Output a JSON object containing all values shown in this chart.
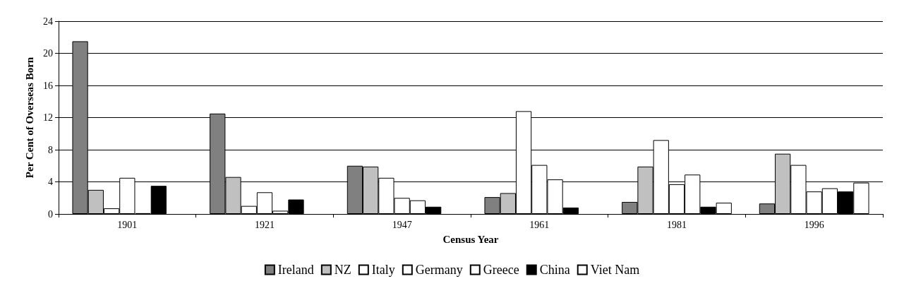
{
  "chart_data": {
    "type": "bar",
    "xlabel": "Census Year",
    "ylabel": "Per Cent of Overseas Born",
    "categories": [
      "1901",
      "1921",
      "1947",
      "1961",
      "1981",
      "1996"
    ],
    "series": [
      {
        "name": "Ireland",
        "color": "#808080",
        "values": [
          21.5,
          12.5,
          6.0,
          2.1,
          1.5,
          1.3
        ]
      },
      {
        "name": "NZ",
        "color": "#c0c0c0",
        "values": [
          3.0,
          4.6,
          5.9,
          2.6,
          5.9,
          7.5
        ]
      },
      {
        "name": "Italy",
        "color": "#ffffff",
        "values": [
          0.7,
          1.0,
          4.5,
          12.8,
          9.2,
          6.1
        ]
      },
      {
        "name": "Germany",
        "color": "#ffffff",
        "values": [
          4.5,
          2.7,
          2.0,
          6.1,
          3.7,
          2.8
        ]
      },
      {
        "name": "Greece",
        "color": "#ffffff",
        "values": [
          0.1,
          0.4,
          1.7,
          4.3,
          4.9,
          3.2
        ]
      },
      {
        "name": "China",
        "color": "#000000",
        "values": [
          3.5,
          1.8,
          0.9,
          0.8,
          0.9,
          2.8
        ]
      },
      {
        "name": "Viet Nam",
        "color": "#ffffff",
        "values": [
          null,
          null,
          null,
          null,
          1.4,
          3.9
        ]
      }
    ],
    "ylim": [
      0,
      24
    ],
    "yticks": [
      0,
      4,
      8,
      12,
      16,
      20,
      24
    ],
    "grid": "y",
    "legend": "bottom"
  }
}
